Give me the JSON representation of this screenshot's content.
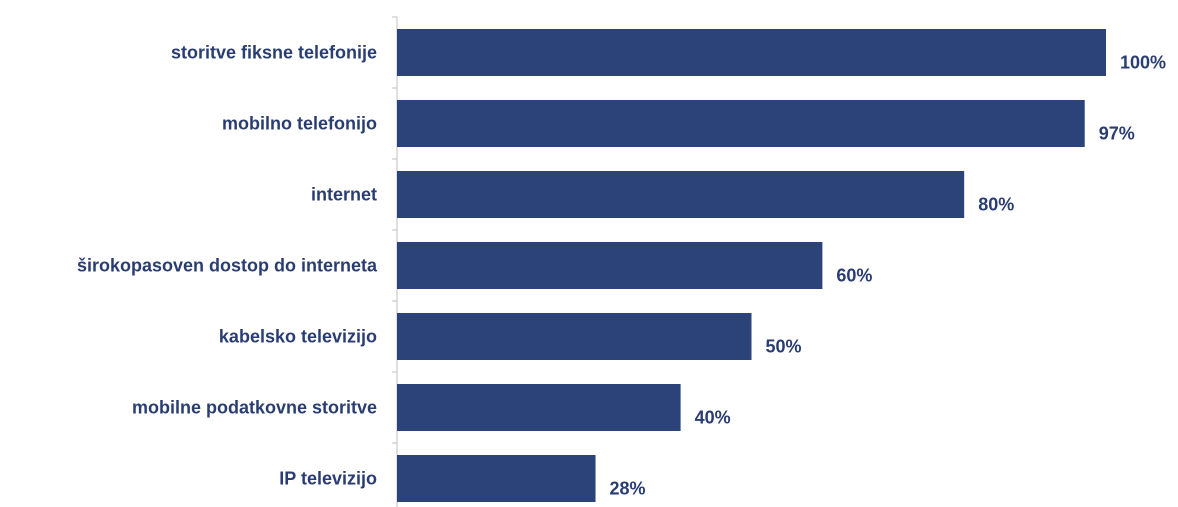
{
  "chart_data": {
    "type": "bar",
    "orientation": "horizontal",
    "categories": [
      "storitve fiksne telefonije",
      "mobilno telefonijo",
      "internet",
      "širokopasoven dostop do interneta",
      "kabelsko televizijo",
      "mobilne podatkovne storitve",
      "IP televizijo"
    ],
    "values": [
      100,
      97,
      80,
      60,
      50,
      40,
      28
    ],
    "value_labels": [
      "100%",
      "97%",
      "80%",
      "60%",
      "50%",
      "40%",
      "28%"
    ],
    "bar_color": "#2b4379",
    "label_color": "#2a3d72",
    "xlim": [
      0,
      100
    ],
    "grid": false,
    "legend": "none",
    "title": "",
    "xlabel": "",
    "ylabel": ""
  }
}
